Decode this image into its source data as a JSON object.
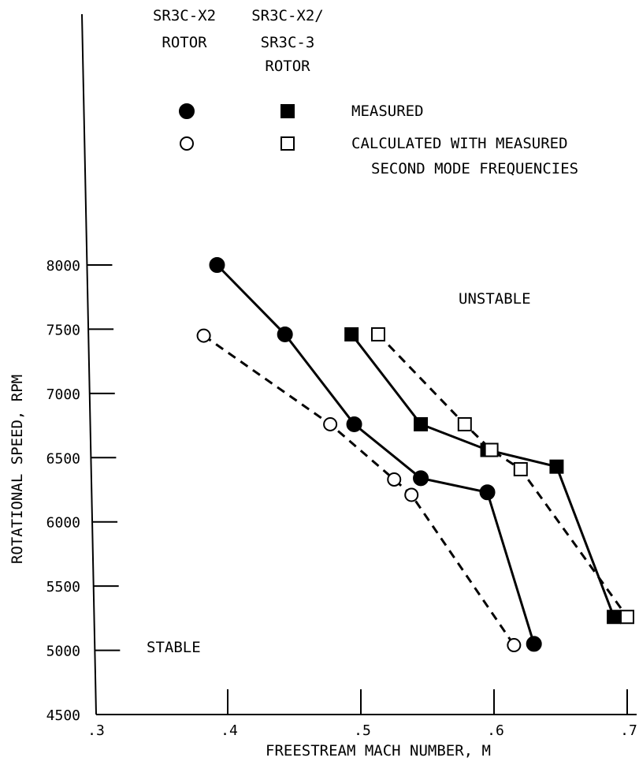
{
  "legend": {
    "col1_header": [
      "SR3C-X2",
      "ROTOR"
    ],
    "col2_header": [
      "SR3C-X2/",
      "SR3C-3",
      "ROTOR"
    ],
    "measured_label": "MEASURED",
    "calculated_label": [
      "CALCULATED WITH MEASURED",
      "SECOND MODE FREQUENCIES"
    ]
  },
  "chart_data": {
    "type": "line",
    "xlabel": "FREESTREAM MACH NUMBER, M",
    "ylabel": "ROTATIONAL SPEED, RPM",
    "xlim": [
      0.3,
      0.7
    ],
    "ylim": [
      4500,
      8000
    ],
    "x_ticks": [
      ".3",
      ".4",
      ".5",
      ".6",
      ".7"
    ],
    "x_tick_values": [
      0.3,
      0.4,
      0.5,
      0.6,
      0.7
    ],
    "y_ticks": [
      "4500",
      "5000",
      "5500",
      "6000",
      "6500",
      "7000",
      "7500",
      "8000"
    ],
    "y_tick_values": [
      4500,
      5000,
      5500,
      6000,
      6500,
      7000,
      7500,
      8000
    ],
    "annotations": {
      "unstable": "UNSTABLE",
      "stable": "STABLE"
    },
    "series": [
      {
        "marker": "filled-circle",
        "line": "solid",
        "x": [
          0.392,
          0.443,
          0.495,
          0.545,
          0.595,
          0.63
        ],
        "y": [
          8000,
          7460,
          6760,
          6340,
          6230,
          5050
        ]
      },
      {
        "marker": "open-circle",
        "line": "dashed",
        "x": [
          0.382,
          0.477,
          0.525,
          0.538,
          0.615
        ],
        "y": [
          7450,
          6760,
          6330,
          6210,
          5040
        ]
      },
      {
        "marker": "filled-square",
        "line": "solid",
        "x": [
          0.493,
          0.545,
          0.595,
          0.647,
          0.69
        ],
        "y": [
          7460,
          6760,
          6560,
          6430,
          5260
        ]
      },
      {
        "marker": "open-square",
        "line": "dashed",
        "x": [
          0.513,
          0.578,
          0.598,
          0.62,
          0.7
        ],
        "y": [
          7460,
          6760,
          6560,
          6410,
          5260
        ]
      }
    ]
  }
}
